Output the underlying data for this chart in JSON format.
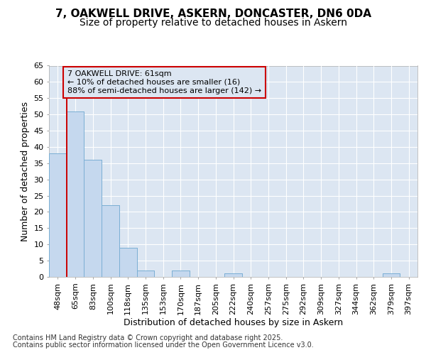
{
  "title_line1": "7, OAKWELL DRIVE, ASKERN, DONCASTER, DN6 0DA",
  "title_line2": "Size of property relative to detached houses in Askern",
  "xlabel": "Distribution of detached houses by size in Askern",
  "ylabel": "Number of detached properties",
  "categories": [
    "48sqm",
    "65sqm",
    "83sqm",
    "100sqm",
    "118sqm",
    "135sqm",
    "153sqm",
    "170sqm",
    "187sqm",
    "205sqm",
    "222sqm",
    "240sqm",
    "257sqm",
    "275sqm",
    "292sqm",
    "309sqm",
    "327sqm",
    "344sqm",
    "362sqm",
    "379sqm",
    "397sqm"
  ],
  "values": [
    38,
    51,
    36,
    22,
    9,
    2,
    0,
    2,
    0,
    0,
    1,
    0,
    0,
    0,
    0,
    0,
    0,
    0,
    0,
    1,
    0
  ],
  "bar_color": "#c5d8ee",
  "bar_edge_color": "#7bafd4",
  "highlight_color": "#cc0000",
  "annotation_text": "7 OAKWELL DRIVE: 61sqm\n← 10% of detached houses are smaller (16)\n88% of semi-detached houses are larger (142) →",
  "annotation_box_color": "#cc0000",
  "ylim": [
    0,
    65
  ],
  "yticks": [
    0,
    5,
    10,
    15,
    20,
    25,
    30,
    35,
    40,
    45,
    50,
    55,
    60,
    65
  ],
  "plot_bg_color": "#dce6f2",
  "fig_bg_color": "#ffffff",
  "grid_color": "#ffffff",
  "footer_line1": "Contains HM Land Registry data © Crown copyright and database right 2025.",
  "footer_line2": "Contains public sector information licensed under the Open Government Licence v3.0.",
  "title_fontsize": 11,
  "subtitle_fontsize": 10,
  "axis_label_fontsize": 9,
  "tick_fontsize": 8,
  "annot_fontsize": 8,
  "footer_fontsize": 7
}
